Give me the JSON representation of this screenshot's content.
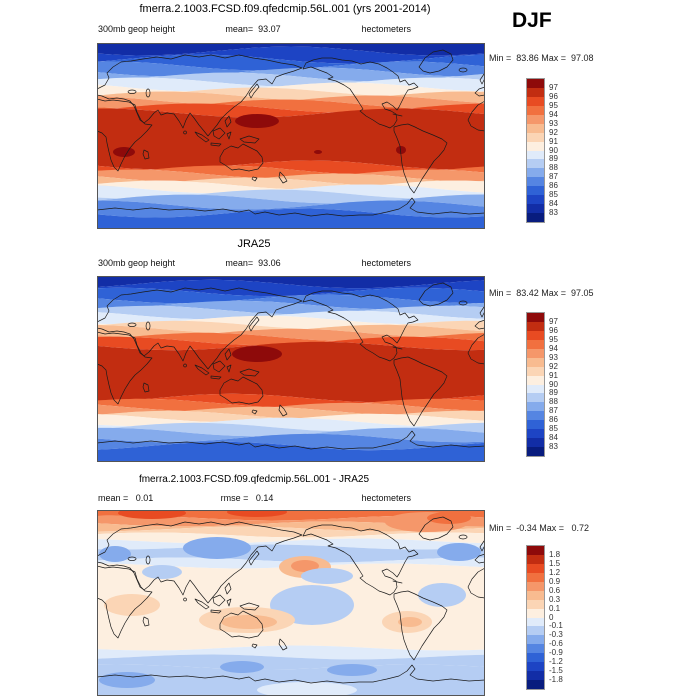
{
  "season": "DJF",
  "palette": [
    "#081C7E",
    "#122DA6",
    "#1D44C4",
    "#2F62D6",
    "#5585E2",
    "#85ABEC",
    "#B5CDF3",
    "#E0EBFA",
    "#FDEFE0",
    "#FBD5B5",
    "#F8BB90",
    "#F5976A",
    "#F1703F",
    "#E84B22",
    "#C22D11",
    "#8E0A0A"
  ],
  "panels": [
    {
      "title": "fmerra.2.1003.FCSD.f09.qfedcmip.56L.001 (yrs 2001-2014)",
      "subtitle_left": "300mb geop height",
      "subtitle_center": "mean=  93.07",
      "subtitle_right": "hectometers",
      "minmax": "Min =  83.86 Max =  97.08",
      "colorbar_labels": [
        "97",
        "96",
        "95",
        "94",
        "93",
        "92",
        "91",
        "90",
        "89",
        "88",
        "87",
        "86",
        "85",
        "84",
        "83"
      ]
    },
    {
      "title": "JRA25",
      "subtitle_left": "300mb geop height",
      "subtitle_center": "mean=  93.06",
      "subtitle_right": "hectometers",
      "minmax": "Min =  83.42 Max =  97.05",
      "colorbar_labels": [
        "97",
        "96",
        "95",
        "94",
        "93",
        "92",
        "91",
        "90",
        "89",
        "88",
        "87",
        "86",
        "85",
        "84",
        "83"
      ]
    },
    {
      "title": "fmerra.2.1003.FCSD.f09.qfedcmip.56L.001 - JRA25",
      "subtitle_left": "mean =   0.01",
      "subtitle_center": "rmse =   0.14",
      "subtitle_right": "hectometers",
      "minmax": "Min =  -0.34 Max =   0.72",
      "colorbar_labels": [
        "1.8",
        "1.5",
        "1.2",
        "0.9",
        "0.6",
        "0.3",
        "0.1",
        "0",
        "-0.1",
        "-0.3",
        "-0.6",
        "-0.9",
        "-1.2",
        "-1.5",
        "-1.8"
      ]
    }
  ],
  "chart_data": [
    {
      "type": "heatmap",
      "subtype": "filled_contour_world_map",
      "title": "fmerra.2.1003.FCSD.f09.qfedcmip.56L.001 (yrs 2001-2014)",
      "variable": "300mb geop height",
      "units": "hectometers",
      "season": "DJF",
      "years": "2001-2014",
      "stats": {
        "mean": 93.07,
        "min": 83.86,
        "max": 97.08
      },
      "contour_levels": [
        83,
        84,
        85,
        86,
        87,
        88,
        89,
        90,
        91,
        92,
        93,
        94,
        95,
        96,
        97
      ],
      "legend_position": "right",
      "projection": "cylindrical-equidistant, lon 0-360, lat 90N-90S",
      "wave_seed": 0.6,
      "wave_amp": 4.5,
      "band_profile": [
        [
          8,
          1
        ],
        [
          16,
          2
        ],
        [
          23,
          3
        ],
        [
          29,
          4
        ],
        [
          34,
          5
        ],
        [
          39,
          6
        ],
        [
          44,
          7
        ],
        [
          49,
          8
        ],
        [
          53,
          9
        ],
        [
          57,
          10
        ],
        [
          61,
          11
        ],
        [
          65,
          12
        ],
        [
          70,
          13
        ],
        [
          122,
          14
        ],
        [
          127,
          13
        ],
        [
          131,
          12
        ],
        [
          135,
          11
        ],
        [
          139,
          10
        ],
        [
          142,
          9
        ],
        [
          146,
          8
        ],
        [
          151,
          7
        ],
        [
          156,
          6
        ],
        [
          162,
          5
        ],
        [
          170,
          4
        ],
        [
          186,
          3
        ]
      ],
      "blobs": [
        [
          160,
          78,
          22,
          7,
          15
        ],
        [
          27,
          109,
          11,
          5,
          15
        ],
        [
          304,
          107,
          5,
          4,
          15
        ],
        [
          221,
          109,
          4,
          2,
          15
        ]
      ]
    },
    {
      "type": "heatmap",
      "subtype": "filled_contour_world_map",
      "title": "JRA25",
      "variable": "300mb geop height",
      "units": "hectometers",
      "season": "DJF",
      "stats": {
        "mean": 93.06,
        "min": 83.42,
        "max": 97.05
      },
      "contour_levels": [
        83,
        84,
        85,
        86,
        87,
        88,
        89,
        90,
        91,
        92,
        93,
        94,
        95,
        96,
        97
      ],
      "legend_position": "right",
      "projection": "cylindrical-equidistant, lon 0-360, lat 90N-90S",
      "wave_seed": 2.3,
      "wave_amp": 4.2,
      "band_profile": [
        [
          8,
          1
        ],
        [
          16,
          2
        ],
        [
          23,
          3
        ],
        [
          29,
          4
        ],
        [
          34,
          5
        ],
        [
          39,
          6
        ],
        [
          44,
          7
        ],
        [
          49,
          8
        ],
        [
          53,
          9
        ],
        [
          57,
          10
        ],
        [
          61,
          11
        ],
        [
          65,
          12
        ],
        [
          70,
          13
        ],
        [
          122,
          14
        ],
        [
          127,
          13
        ],
        [
          131,
          12
        ],
        [
          135,
          11
        ],
        [
          139,
          10
        ],
        [
          142,
          9
        ],
        [
          146,
          8
        ],
        [
          151,
          7
        ],
        [
          156,
          6
        ],
        [
          162,
          5
        ],
        [
          170,
          4
        ],
        [
          186,
          3
        ]
      ],
      "blobs": [
        [
          160,
          78,
          25,
          8,
          15
        ]
      ]
    },
    {
      "type": "heatmap",
      "subtype": "filled_contour_world_map_difference",
      "title": "fmerra.2.1003.FCSD.f09.qfedcmip.56L.001 - JRA25",
      "units": "hectometers",
      "season": "DJF",
      "stats": {
        "mean": 0.01,
        "rmse": 0.14,
        "min": -0.34,
        "max": 0.72
      },
      "contour_levels": [
        -1.8,
        -1.5,
        -1.2,
        -0.9,
        -0.6,
        -0.3,
        -0.1,
        0,
        0.1,
        0.3,
        0.6,
        0.9,
        1.2,
        1.5,
        1.8
      ],
      "legend_position": "right",
      "projection": "cylindrical-equidistant, lon 0-360, lat 90N-90S",
      "wave_seed": 4.1,
      "wave_amp": 2.5,
      "band_profile": [
        [
          8,
          12
        ],
        [
          14,
          11
        ],
        [
          19,
          10
        ],
        [
          25,
          9
        ],
        [
          31,
          8
        ],
        [
          37,
          7
        ],
        [
          50,
          6
        ],
        [
          56,
          7
        ],
        [
          138,
          8
        ],
        [
          147,
          7
        ],
        [
          157,
          6
        ],
        [
          186,
          6
        ]
      ],
      "blobs": [
        [
          55,
          3,
          34,
          6,
          13
        ],
        [
          160,
          2,
          30,
          5,
          13
        ],
        [
          330,
          12,
          42,
          10,
          11
        ],
        [
          352,
          8,
          22,
          6,
          12
        ],
        [
          120,
          38,
          34,
          11,
          5
        ],
        [
          18,
          44,
          16,
          8,
          5
        ],
        [
          362,
          42,
          22,
          9,
          5
        ],
        [
          208,
          57,
          26,
          11,
          10
        ],
        [
          208,
          56,
          14,
          6,
          11
        ],
        [
          230,
          66,
          26,
          8,
          6
        ],
        [
          215,
          95,
          42,
          20,
          6
        ],
        [
          345,
          85,
          24,
          12,
          6
        ],
        [
          65,
          62,
          20,
          7,
          6
        ],
        [
          35,
          95,
          28,
          11,
          9
        ],
        [
          150,
          110,
          48,
          13,
          9
        ],
        [
          152,
          112,
          28,
          7,
          10
        ],
        [
          310,
          112,
          25,
          11,
          9
        ],
        [
          313,
          112,
          12,
          5,
          10
        ],
        [
          210,
          180,
          50,
          8,
          7
        ],
        [
          30,
          170,
          28,
          8,
          5
        ],
        [
          145,
          157,
          22,
          6,
          5
        ],
        [
          255,
          160,
          25,
          6,
          5
        ]
      ]
    }
  ]
}
